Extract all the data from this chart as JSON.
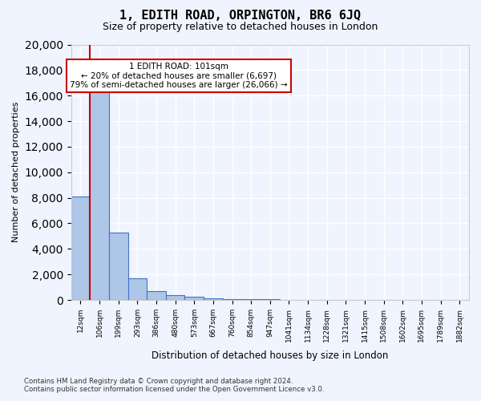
{
  "title1": "1, EDITH ROAD, ORPINGTON, BR6 6JQ",
  "title2": "Size of property relative to detached houses in London",
  "xlabel": "Distribution of detached houses by size in London",
  "ylabel": "Number of detached properties",
  "bar_color": "#aec6e8",
  "bar_edge_color": "#4472c4",
  "bin_labels": [
    "12sqm",
    "106sqm",
    "199sqm",
    "293sqm",
    "386sqm",
    "480sqm",
    "573sqm",
    "667sqm",
    "760sqm",
    "854sqm",
    "947sqm",
    "1041sqm",
    "1134sqm",
    "1228sqm",
    "1321sqm",
    "1415sqm",
    "1508sqm",
    "1602sqm",
    "1695sqm",
    "1789sqm",
    "1882sqm"
  ],
  "bar_heights": [
    8100,
    17000,
    5300,
    1700,
    700,
    400,
    280,
    150,
    90,
    60,
    40,
    30,
    20,
    15,
    10,
    8,
    5,
    4,
    3,
    2,
    1
  ],
  "ylim": [
    0,
    20000
  ],
  "yticks": [
    0,
    2000,
    4000,
    6000,
    8000,
    10000,
    12000,
    14000,
    16000,
    18000,
    20000
  ],
  "vline_x_index": 1,
  "vline_color": "#cc0000",
  "annotation_text": "1 EDITH ROAD: 101sqm\n← 20% of detached houses are smaller (6,697)\n79% of semi-detached houses are larger (26,066) →",
  "annotation_box_color": "#ffffff",
  "annotation_box_edge_color": "#cc0000",
  "footer_line1": "Contains HM Land Registry data © Crown copyright and database right 2024.",
  "footer_line2": "Contains public sector information licensed under the Open Government Licence v3.0.",
  "bg_color": "#f0f4ff",
  "grid_color": "#ffffff"
}
